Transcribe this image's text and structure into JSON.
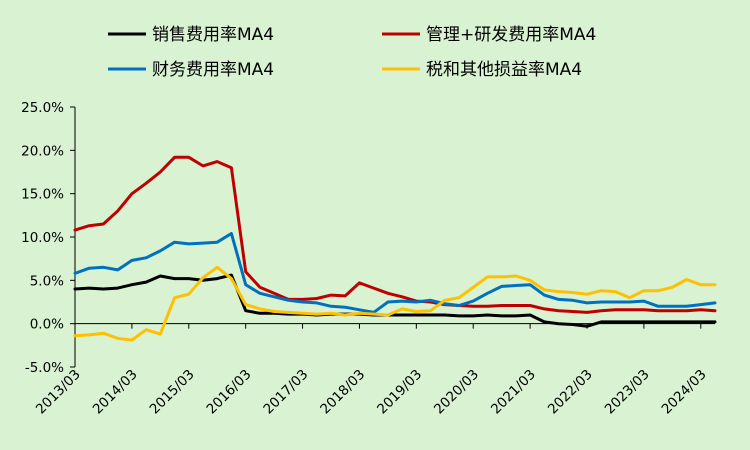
{
  "chart_data": {
    "type": "line",
    "title": "",
    "xlabel": "",
    "ylabel": "",
    "ylim": [
      -0.05,
      0.25
    ],
    "y_ticks": [
      -0.05,
      0.0,
      0.05,
      0.1,
      0.15,
      0.2,
      0.25
    ],
    "y_tick_labels": [
      "-5.0%",
      "0.0%",
      "5.0%",
      "10.0%",
      "15.0%",
      "20.0%",
      "25.0%"
    ],
    "x_start": "2013/03",
    "x_end": "2024/06",
    "x_tick_labels": [
      "2013/03",
      "2014/03",
      "2015/03",
      "2016/03",
      "2017/03",
      "2018/03",
      "2019/03",
      "2020/03",
      "2021/03",
      "2022/03",
      "2023/03",
      "2024/03"
    ],
    "grid": false,
    "legend_position": "top",
    "x": [
      "2013/03",
      "2013/06",
      "2013/09",
      "2013/12",
      "2014/03",
      "2014/06",
      "2014/09",
      "2014/12",
      "2015/03",
      "2015/06",
      "2015/09",
      "2015/12",
      "2016/03",
      "2016/06",
      "2016/09",
      "2016/12",
      "2017/03",
      "2017/06",
      "2017/09",
      "2017/12",
      "2018/03",
      "2018/06",
      "2018/09",
      "2018/12",
      "2019/03",
      "2019/06",
      "2019/09",
      "2019/12",
      "2020/03",
      "2020/06",
      "2020/09",
      "2020/12",
      "2021/03",
      "2021/06",
      "2021/09",
      "2021/12",
      "2022/03",
      "2022/06",
      "2022/09",
      "2022/12",
      "2023/03",
      "2023/06",
      "2023/09",
      "2023/12",
      "2024/03",
      "2024/06"
    ],
    "series": [
      {
        "name": "销售费用率MA4",
        "color": "#000000",
        "values": [
          0.04,
          0.041,
          0.04,
          0.041,
          0.045,
          0.048,
          0.055,
          0.052,
          0.052,
          0.05,
          0.052,
          0.056,
          0.015,
          0.012,
          0.012,
          0.011,
          0.011,
          0.01,
          0.011,
          0.011,
          0.011,
          0.01,
          0.01,
          0.01,
          0.01,
          0.01,
          0.01,
          0.009,
          0.009,
          0.01,
          0.009,
          0.009,
          0.01,
          0.002,
          0.0,
          -0.001,
          -0.003,
          0.002,
          0.002,
          0.002,
          0.002,
          0.002,
          0.002,
          0.002,
          0.002,
          0.002
        ]
      },
      {
        "name": "管理+研发费用率MA4",
        "color": "#C00000",
        "values": [
          0.108,
          0.113,
          0.115,
          0.13,
          0.15,
          0.162,
          0.175,
          0.192,
          0.192,
          0.182,
          0.187,
          0.18,
          0.06,
          0.042,
          0.035,
          0.028,
          0.028,
          0.029,
          0.033,
          0.032,
          0.047,
          0.041,
          0.035,
          0.031,
          0.026,
          0.025,
          0.022,
          0.021,
          0.02,
          0.02,
          0.021,
          0.021,
          0.021,
          0.017,
          0.015,
          0.014,
          0.013,
          0.015,
          0.016,
          0.016,
          0.016,
          0.015,
          0.015,
          0.015,
          0.016,
          0.015
        ]
      },
      {
        "name": "财务费用率MA4",
        "color": "#0070C0",
        "values": [
          0.058,
          0.064,
          0.065,
          0.062,
          0.073,
          0.076,
          0.084,
          0.094,
          0.092,
          0.093,
          0.094,
          0.104,
          0.045,
          0.035,
          0.031,
          0.027,
          0.025,
          0.024,
          0.02,
          0.019,
          0.016,
          0.013,
          0.025,
          0.026,
          0.025,
          0.027,
          0.023,
          0.021,
          0.026,
          0.035,
          0.043,
          0.044,
          0.045,
          0.033,
          0.028,
          0.027,
          0.024,
          0.025,
          0.025,
          0.025,
          0.026,
          0.02,
          0.02,
          0.02,
          0.022,
          0.024
        ]
      },
      {
        "name": "税和其他损益率MA4",
        "color": "#FFC000",
        "values": [
          -0.014,
          -0.013,
          -0.011,
          -0.017,
          -0.019,
          -0.007,
          -0.012,
          0.03,
          0.034,
          0.053,
          0.065,
          0.052,
          0.022,
          0.017,
          0.014,
          0.013,
          0.012,
          0.011,
          0.012,
          0.01,
          0.012,
          0.011,
          0.01,
          0.017,
          0.014,
          0.015,
          0.027,
          0.03,
          0.042,
          0.054,
          0.054,
          0.055,
          0.05,
          0.039,
          0.037,
          0.036,
          0.034,
          0.038,
          0.037,
          0.03,
          0.038,
          0.038,
          0.042,
          0.051,
          0.045,
          0.045
        ]
      }
    ]
  }
}
